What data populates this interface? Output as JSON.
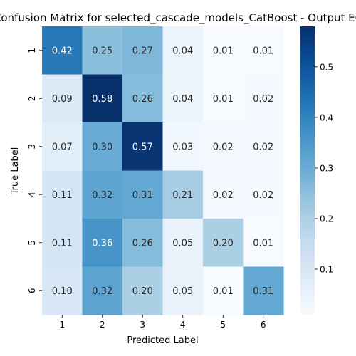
{
  "chart_data": {
    "type": "heatmap",
    "title": "Confusion Matrix for selected_cascade_models_CatBoost - Output EC",
    "xlabel": "Predicted Label",
    "ylabel": "True Label",
    "x_categories": [
      "1",
      "2",
      "3",
      "4",
      "5",
      "6"
    ],
    "y_categories": [
      "1",
      "2",
      "3",
      "4",
      "5",
      "6"
    ],
    "values": [
      [
        0.42,
        0.25,
        0.27,
        0.04,
        0.01,
        0.01
      ],
      [
        0.09,
        0.58,
        0.26,
        0.04,
        0.01,
        0.02
      ],
      [
        0.07,
        0.3,
        0.57,
        0.03,
        0.02,
        0.02
      ],
      [
        0.11,
        0.32,
        0.31,
        0.21,
        0.02,
        0.02
      ],
      [
        0.11,
        0.36,
        0.26,
        0.05,
        0.2,
        0.01
      ],
      [
        0.1,
        0.32,
        0.2,
        0.05,
        0.01,
        0.31
      ]
    ],
    "cell_labels": [
      [
        "0.42",
        "0.25",
        "0.27",
        "0.04",
        "0.01",
        "0.01"
      ],
      [
        "0.09",
        "0.58",
        "0.26",
        "0.04",
        "0.01",
        "0.02"
      ],
      [
        "0.07",
        "0.30",
        "0.57",
        "0.03",
        "0.02",
        "0.02"
      ],
      [
        "0.11",
        "0.32",
        "0.31",
        "0.21",
        "0.02",
        "0.02"
      ],
      [
        "0.11",
        "0.36",
        "0.26",
        "0.05",
        "0.20",
        "0.01"
      ],
      [
        "0.10",
        "0.32",
        "0.20",
        "0.05",
        "0.01",
        "0.31"
      ]
    ],
    "colormap": "Blues",
    "vmin": 0.01,
    "vmax": 0.58,
    "colorbar_ticks": [
      "0.1",
      "0.2",
      "0.3",
      "0.4",
      "0.5"
    ],
    "colorbar_tick_values": [
      0.1,
      0.2,
      0.3,
      0.4,
      0.5
    ]
  }
}
